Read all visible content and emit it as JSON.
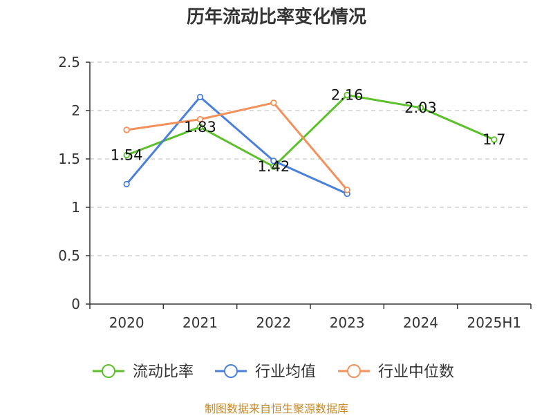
{
  "chart_data": {
    "type": "line",
    "title": "历年流动比率变化情况",
    "categories": [
      "2020",
      "2021",
      "2022",
      "2023",
      "2024",
      "2025H1"
    ],
    "ylim": [
      0,
      2.5
    ],
    "yticks": [
      "0",
      "0.5",
      "1",
      "1.5",
      "2",
      "2.5"
    ],
    "grid": true,
    "legend_position": "bottom",
    "series": [
      {
        "name": "流动比率",
        "color": "#5bc02a",
        "values": [
          1.54,
          1.83,
          1.42,
          2.16,
          2.03,
          1.7
        ],
        "labels": [
          "1.54",
          "1.83",
          "1.42",
          "2.16",
          "2.03",
          "1.7"
        ]
      },
      {
        "name": "行业均值",
        "color": "#4a7fdc",
        "values": [
          1.24,
          2.14,
          1.48,
          1.14,
          null,
          null
        ]
      },
      {
        "name": "行业中位数",
        "color": "#f4905a",
        "values": [
          1.8,
          1.91,
          2.08,
          1.18,
          null,
          null
        ]
      }
    ]
  },
  "footer": {
    "source": "制图数据来自恒生聚源数据库"
  }
}
